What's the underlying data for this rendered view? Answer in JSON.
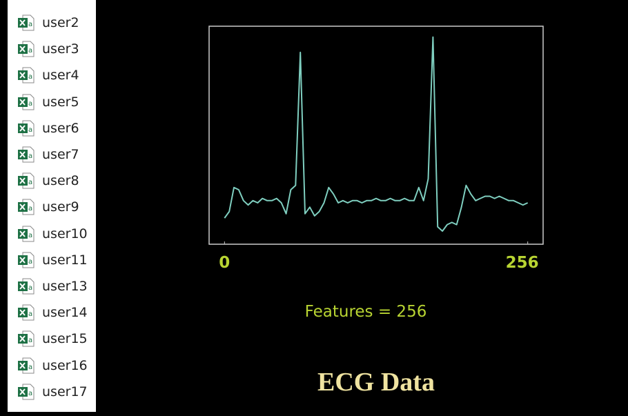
{
  "files": [
    "user2",
    "user3",
    "user4",
    "user5",
    "user6",
    "user7",
    "user8",
    "user9",
    "user10",
    "user11",
    "user13",
    "user14",
    "user15",
    "user16",
    "user17"
  ],
  "chart_data": {
    "type": "line",
    "title": "ECG Data",
    "x_label": "Features = 256",
    "x": [
      0,
      4,
      8,
      12,
      16,
      20,
      24,
      28,
      32,
      36,
      40,
      44,
      48,
      52,
      56,
      60,
      64,
      68,
      72,
      76,
      80,
      84,
      88,
      92,
      96,
      100,
      104,
      108,
      112,
      116,
      120,
      124,
      128,
      132,
      136,
      140,
      144,
      148,
      152,
      156,
      160,
      164,
      168,
      172,
      176,
      180,
      184,
      188,
      192,
      196,
      200,
      204,
      208,
      212,
      216,
      220,
      224,
      228,
      232,
      236,
      240,
      244,
      248,
      252,
      256
    ],
    "values": [
      0.12,
      0.15,
      0.26,
      0.25,
      0.2,
      0.18,
      0.2,
      0.19,
      0.21,
      0.2,
      0.2,
      0.21,
      0.19,
      0.14,
      0.25,
      0.27,
      0.88,
      0.14,
      0.17,
      0.13,
      0.15,
      0.19,
      0.26,
      0.23,
      0.19,
      0.2,
      0.19,
      0.2,
      0.2,
      0.19,
      0.2,
      0.2,
      0.21,
      0.2,
      0.2,
      0.21,
      0.2,
      0.2,
      0.21,
      0.2,
      0.2,
      0.26,
      0.2,
      0.3,
      0.95,
      0.08,
      0.06,
      0.09,
      0.1,
      0.09,
      0.17,
      0.27,
      0.23,
      0.2,
      0.21,
      0.22,
      0.22,
      0.21,
      0.22,
      0.21,
      0.2,
      0.2,
      0.19,
      0.18,
      0.19
    ],
    "color": "#7fcfc0",
    "xlim": [
      -13,
      269
    ],
    "ylim": [
      0,
      1
    ],
    "xticks": [
      0,
      256
    ]
  }
}
